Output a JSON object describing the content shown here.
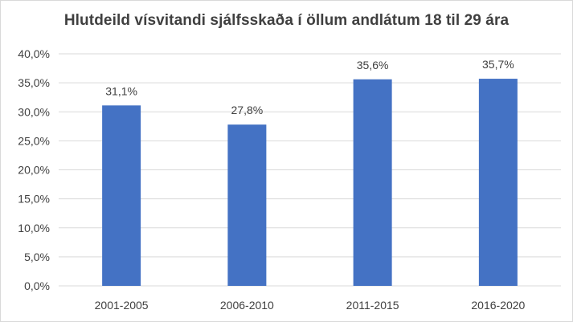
{
  "chart_data": {
    "type": "bar",
    "title": "Hlutdeild vísvitandi sjálfsskaða í öllum andlátum 18 til 29 ára",
    "categories": [
      "2001-2005",
      "2006-2010",
      "2011-2015",
      "2016-2020"
    ],
    "values": [
      31.1,
      27.8,
      35.6,
      35.7
    ],
    "value_labels": [
      "31,1%",
      "27,8%",
      "35,6%",
      "35,7%"
    ],
    "ylim": [
      0,
      40
    ],
    "y_ticks": [
      "0,0%",
      "5,0%",
      "10,0%",
      "15,0%",
      "20,0%",
      "25,0%",
      "30,0%",
      "35,0%",
      "40,0%"
    ],
    "xlabel": "",
    "ylabel": "",
    "grid": true,
    "legend": "none",
    "bar_color": "#4472c4",
    "grid_color": "#d9d9d9"
  }
}
